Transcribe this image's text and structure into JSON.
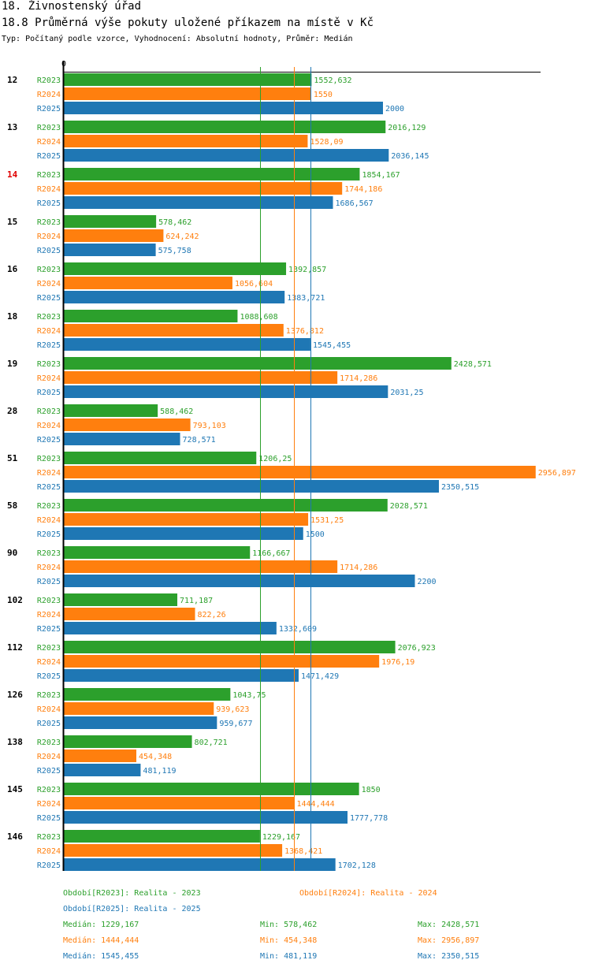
{
  "header": {
    "title": "18. Živnostenský úřad",
    "subtitle": "18.8 Průměrná výše pokuty uložené příkazem na místě v Kč",
    "description": "Typ: Počítaný podle vzorce, Vyhodnocení: Absolutní hodnoty, Průměr: Medián"
  },
  "colors": {
    "R2023": "#2ca02c",
    "R2024": "#ff7f0e",
    "R2025": "#1f77b4",
    "highlight": "#e00000"
  },
  "chart_data": {
    "type": "bar",
    "orientation": "horizontal",
    "title": "18.8 Průměrná výše pokuty uložené příkazem na místě v Kč",
    "x_tick_labels": [
      "0"
    ],
    "xlim": [
      0,
      2956.897
    ],
    "series_names": [
      "R2023",
      "R2024",
      "R2025"
    ],
    "highlighted_category": "14",
    "categories": [
      "12",
      "13",
      "14",
      "15",
      "16",
      "18",
      "19",
      "28",
      "51",
      "58",
      "90",
      "102",
      "112",
      "126",
      "138",
      "145",
      "146"
    ],
    "series": [
      {
        "name": "R2023",
        "values": [
          1552.632,
          2016.129,
          1854.167,
          578.462,
          1392.857,
          1088.608,
          2428.571,
          588.462,
          1206.25,
          2028.571,
          1166.667,
          711.187,
          2076.923,
          1043.75,
          802.721,
          1850,
          1229.167
        ],
        "labels": [
          "1552,632",
          "2016,129",
          "1854,167",
          "578,462",
          "1392,857",
          "1088,608",
          "2428,571",
          "588,462",
          "1206,25",
          "2028,571",
          "1166,667",
          "711,187",
          "2076,923",
          "1043,75",
          "802,721",
          "1850",
          "1229,167"
        ]
      },
      {
        "name": "R2024",
        "values": [
          1550,
          1528.09,
          1744.186,
          624.242,
          1056.604,
          1376.812,
          1714.286,
          793.103,
          2956.897,
          1531.25,
          1714.286,
          822.26,
          1976.19,
          939.623,
          454.348,
          1444.444,
          1368.421
        ],
        "labels": [
          "1550",
          "1528,09",
          "1744,186",
          "624,242",
          "1056,604",
          "1376,812",
          "1714,286",
          "793,103",
          "2956,897",
          "1531,25",
          "1714,286",
          "822,26",
          "1976,19",
          "939,623",
          "454,348",
          "1444,444",
          "1368,421"
        ]
      },
      {
        "name": "R2025",
        "values": [
          2000,
          2036.145,
          1686.567,
          575.758,
          1383.721,
          1545.455,
          2031.25,
          728.571,
          2350.515,
          1500,
          2200,
          1332.609,
          1471.429,
          959.677,
          481.119,
          1777.778,
          1702.128
        ],
        "labels": [
          "2000",
          "2036,145",
          "1686,567",
          "575,758",
          "1383,721",
          "1545,455",
          "2031,25",
          "728,571",
          "2350,515",
          "1500",
          "2200",
          "1332,609",
          "1471,429",
          "959,677",
          "481,119",
          "1777,778",
          "1702,128"
        ]
      }
    ],
    "median_lines": [
      {
        "series": "R2023",
        "value": 1229.167
      },
      {
        "series": "R2024",
        "value": 1444.444
      },
      {
        "series": "R2025",
        "value": 1545.455
      }
    ]
  },
  "legend": {
    "periods": [
      {
        "series": "R2023",
        "label": "Období[R2023]: Realita - 2023"
      },
      {
        "series": "R2024",
        "label": "Období[R2024]: Realita - 2024"
      },
      {
        "series": "R2025",
        "label": "Období[R2025]: Realita - 2025"
      }
    ],
    "stats": [
      {
        "series": "R2023",
        "median": "Medián: 1229,167",
        "min": "Min: 578,462",
        "max": "Max: 2428,571"
      },
      {
        "series": "R2024",
        "median": "Medián: 1444,444",
        "min": "Min: 454,348",
        "max": "Max: 2956,897"
      },
      {
        "series": "R2025",
        "median": "Medián: 1545,455",
        "min": "Min: 481,119",
        "max": "Max: 2350,515"
      }
    ]
  }
}
